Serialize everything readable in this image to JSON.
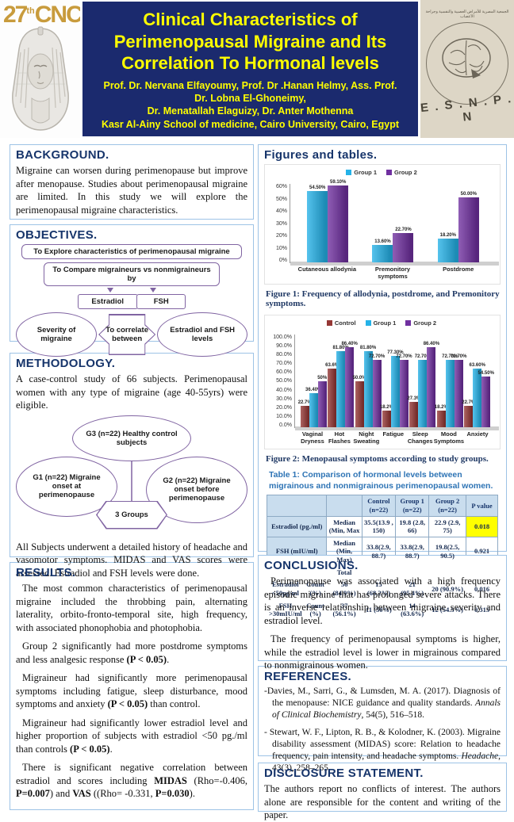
{
  "header": {
    "logo": {
      "num": "27",
      "ord": "th",
      "acronym": "CNC"
    },
    "title_lines": [
      "Clinical Characteristics of",
      "Perimenopausal Migraine and Its",
      "Correlation To Hormonal levels"
    ],
    "authors": [
      "Prof. Dr. Nervana Elfayoumy, Prof. Dr .Hanan Helmy, Ass. Prof.",
      "Dr. Lobna El-Ghoneimy,",
      "Dr. Menatallah Elaguizy, Dr. Anter Mothenna"
    ],
    "affiliation": "Kasr Al-Ainy School of medicine, Cairo University, Cairo, Egypt",
    "society_acronym": "E . S . N . P . N",
    "society_arabic": "الجمعية المصرية للأمراض العصبية والنفسية وجراحة الأعصاب"
  },
  "sections": {
    "background": {
      "title": "BACKGROUND.",
      "body": "Migraine can worsen during perimenopause but improve after menopause. Studies about perimenopausal migraine are limited. In this study we will explore the perimenopausal migraine characteristics."
    },
    "objectives": {
      "title": "OBJECTIVES.",
      "box1": "To Explore characteristics of perimenopausal migraine",
      "box2": "To Compare migraineurs vs nonmigraineurs by",
      "estradiol": "Estradiol",
      "fsh": "FSH",
      "left_ellipse": "Severity of migraine",
      "center": "To correlate between",
      "right_ellipse": "Estradiol and FSH levels"
    },
    "methodology": {
      "title": "METHODOLOGY.",
      "p1": "A case-control study of 66 subjects. Perimenopausal women with any type of migraine (age 40-55yrs) were eligible.",
      "g3": "G3 (n=22) Healthy control subjects",
      "g1": "G1 (n=22) Migraine onset at perimenopause",
      "g2": "G2 (n=22) Migraine onset before perimenopause",
      "center": "3 Groups",
      "p2": "All Subjects underwent a detailed history of headache and vasomotor symptoms. MIDAS and VAS scores were assessed. Estradiol and FSH levels were done."
    },
    "results": {
      "title": "RESULTS.",
      "paragraphs": [
        [
          {
            "t": "The most common characteristics of perimenopausal migraine included the throbbing pain, alternating laterality, orbito-fronto-temporal site, high frequency, with associated phonophobia and photophobia."
          }
        ],
        [
          {
            "t": "Group 2 significantly had more postdrome symptoms and less analgesic response "
          },
          {
            "t": "(P < 0.05)",
            "b": 1
          },
          {
            "t": "."
          }
        ],
        [
          {
            "t": "Migraineur had significantly more perimenopausal symptoms including fatigue, sleep disturbance, mood symptoms and anxiety "
          },
          {
            "t": "(P < 0.05)",
            "b": 1
          },
          {
            "t": " than control."
          }
        ],
        [
          {
            "t": "Migraineur had significantly lower estradiol level and higher proportion of subjects with estradiol <50 pg./ml than controls "
          },
          {
            "t": "(P < 0.05)",
            "b": 1
          },
          {
            "t": "."
          }
        ],
        [
          {
            "t": "There is significant negative correlation between estradiol and scores including "
          },
          {
            "t": "MIDAS",
            "b": 1
          },
          {
            "t": " (Rho=-0.406, "
          },
          {
            "t": "P=0.007",
            "b": 1
          },
          {
            "t": ") and "
          },
          {
            "t": "VAS",
            "b": 1
          },
          {
            "t": " ((Rho= -0.331, "
          },
          {
            "t": "P=0.030",
            "b": 1
          },
          {
            "t": ")."
          }
        ]
      ]
    },
    "figures": {
      "title": "Figures and tables.",
      "fig1_caption": "Figure 1: Frequency of allodynia, postdrome, and Premonitory symptoms.",
      "fig2_caption": "Figure 2: Menopausal symptoms according to study groups."
    },
    "conclusions": {
      "title": "CONCLUSIONS.",
      "p1": "Perimenopause was associated with a high frequency episodic migraine that has prolonged severe attacks. There is an inverse relationship between migraine severity and estradiol level.",
      "p2": "The frequency of perimenopausal symptoms is higher, while the estradiol level is lower in migrainous compared to nonmigrainous women."
    },
    "references": {
      "title": "REFERENCES.",
      "items": [
        [
          {
            "t": "-Davies, M., Sarri, G., & Lumsden, M. A. (2017). Diagnosis of the menopause: NICE guidance and quality standards. "
          },
          {
            "t": "Annals of Clinical Biochemistry",
            "i": 1
          },
          {
            "t": ", 54(5), 516–518."
          }
        ],
        [
          {
            "t": "- Stewart, W. F., Lipton, R. B., & Kolodner, K. (2003). Migraine disability assessment (MIDAS) score: Relation to headache frequency, pain intensity, and headache symptoms. "
          },
          {
            "t": "Headache",
            "i": 1
          },
          {
            "t": ", 43(3), 258–265."
          }
        ]
      ]
    },
    "disclosure": {
      "title": "DISCLOSURE STATEMENT.",
      "body": "The authors report no conflicts of interest. The authors alone are responsible for the content and writing of the paper."
    }
  },
  "chart_data": [
    {
      "id": "fig1",
      "type": "bar",
      "title": "Frequency of allodynia, postdrome, and Premonitory symptoms",
      "categories": [
        "Cutaneous allodynia",
        "Premonitory symptoms",
        "Postdrome"
      ],
      "series": [
        {
          "name": "Group 1",
          "color": "#25b2e8",
          "values": [
            54.5,
            13.6,
            18.2
          ],
          "labels": [
            "54.50%",
            "13.60%",
            "18.20%"
          ]
        },
        {
          "name": "Group 2",
          "color": "#7030a0",
          "values": [
            59.1,
            22.7,
            50.0
          ],
          "labels": [
            "59.10%",
            "22.70%",
            "50.00%"
          ]
        }
      ],
      "ymax": 60,
      "yticks": [
        "60%",
        "50%",
        "40%",
        "30%",
        "20%",
        "10%",
        "0%"
      ],
      "ylim": [
        0,
        60
      ],
      "grid": false,
      "legend_position": "top"
    },
    {
      "id": "fig2",
      "type": "bar",
      "title": "Menopausal symptoms according to study groups",
      "categories": [
        "Vaginal Dryness",
        "Hot Flashes",
        "Night Sweating",
        "Fatigue",
        "Sleep Changes",
        "Mood Symptoms",
        "Anxiety"
      ],
      "series": [
        {
          "name": "Control",
          "color": "#953735",
          "values": [
            22.7,
            63.6,
            50.0,
            18.2,
            27.3,
            18.2,
            22.7
          ],
          "labels": [
            "22.7%",
            "63.6%",
            "50.0%",
            "18.2%",
            "27.3%",
            "18.2%",
            "22.7%"
          ]
        },
        {
          "name": "Group 1",
          "color": "#25b2e8",
          "values": [
            36.4,
            81.8,
            81.8,
            77.3,
            72.7,
            72.7,
            63.6
          ],
          "labels": [
            "36.40%",
            "81.80%",
            "81.80%",
            "77.30%",
            "72.70%",
            "72.70%",
            "63.60%"
          ]
        },
        {
          "name": "Group 2",
          "color": "#7030a0",
          "values": [
            50.0,
            86.4,
            72.7,
            72.7,
            86.4,
            72.7,
            54.5
          ],
          "labels": [
            "50%",
            "86.40%",
            "72.70%",
            "72.70%",
            "86.40%",
            "72.70%",
            "54.50%"
          ]
        }
      ],
      "ymax": 100,
      "yticks": [
        "100.0%",
        "90.0%",
        "80.0%",
        "70.0%",
        "60.0%",
        "50.0%",
        "40.0%",
        "30.0%",
        "20.0%",
        "10.0%",
        "0.0%"
      ],
      "ylim": [
        0,
        100
      ],
      "grid": false,
      "legend_position": "top"
    }
  ],
  "table": {
    "caption": "Table 1: Comparison of hormonal levels between migrainous and nonmigrainous perimenopausal women.",
    "rows": [
      [
        {
          "t": "",
          "span": 2,
          "h": 1
        },
        {
          "t": "",
          "h": 1
        },
        {
          "t": "Control (n=22)",
          "h": 1
        },
        {
          "t": "Group 1 (n=22)",
          "h": 1
        },
        {
          "t": "Group 2 (n=22)",
          "h": 1
        },
        {
          "t": "P value",
          "h": 1
        }
      ],
      [
        {
          "t": "Estradiol (pg./ml)",
          "span": 2,
          "cls": "lb"
        },
        {
          "t": "Median (Min, Max"
        },
        {
          "t": "35.5(13.9 , 150)"
        },
        {
          "t": "19.8 (2.8, 66)"
        },
        {
          "t": "22.9 (2.9, 75)"
        },
        {
          "t": "0.018",
          "cls": "sig"
        }
      ],
      [
        {
          "t": "FSH (mIU/ml)",
          "span": 2,
          "cls": "lb"
        },
        {
          "t": "Median (Min, Max)"
        },
        {
          "t": "33.8(2.9, 88.7)"
        },
        {
          "t": "33.8(2.9, 88.7)"
        },
        {
          "t": "19.8(2.5, 90.5)"
        },
        {
          "t": "0.921"
        }
      ],
      [
        {
          "t": "",
          "span": 2,
          "cls": "lb"
        },
        {
          "t": "Total"
        },
        {
          "t": ""
        },
        {
          "t": ""
        },
        {
          "t": ""
        },
        {
          "t": ""
        }
      ],
      [
        {
          "t": "Estradiol <50pg/ml",
          "cls": "lb"
        },
        {
          "t": "Count (%)",
          "cls": "lb"
        },
        {
          "t": "56 (84.9%)"
        },
        {
          "t": "15 (68.2%)"
        },
        {
          "t": "21 (95.4%)"
        },
        {
          "t": "20 (90.9%)"
        },
        {
          "t": "0.016",
          "cls": "sig"
        }
      ],
      [
        {
          "t": "FSH >30mIU/ml",
          "cls": "lb"
        },
        {
          "t": "Count (%)",
          "cls": "lb"
        },
        {
          "t": "37 (56.1%)"
        },
        {
          "t": "11 (50%)"
        },
        {
          "t": "14 (63.6%)"
        },
        {
          "t": "12 (54.5%)"
        },
        {
          "t": "0.315"
        }
      ]
    ]
  }
}
